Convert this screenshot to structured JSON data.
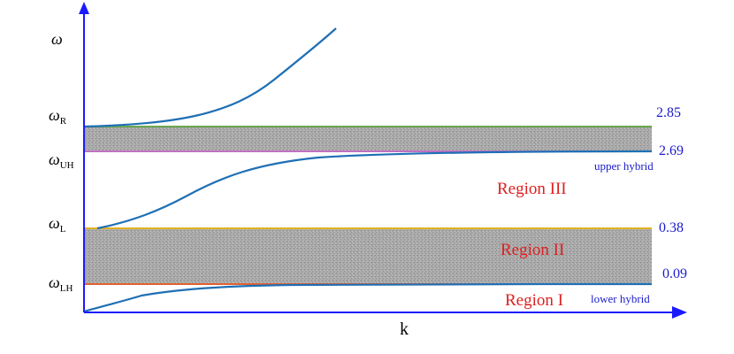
{
  "axes": {
    "y_label": "ω",
    "x_label": "k"
  },
  "frequency_labels": [
    {
      "id": "R",
      "symbol": "ω",
      "subscript": "R"
    },
    {
      "id": "UH",
      "symbol": "ω",
      "subscript": "UH"
    },
    {
      "id": "L",
      "symbol": "ω",
      "subscript": "L"
    },
    {
      "id": "LH",
      "symbol": "ω",
      "subscript": "LH"
    }
  ],
  "values": {
    "R": "2.85",
    "UH": "2.69",
    "L": "0.38",
    "LH": "0.09"
  },
  "annotations": {
    "upper_hybrid": "upper hybrid",
    "lower_hybrid": "lower hybrid"
  },
  "regions": {
    "region_1": "Region I",
    "region_2": "Region II",
    "region_3": "Region III"
  },
  "colors": {
    "curve": "#1f6fb4",
    "axis": "#1a1aff",
    "line_R": "#6aa84f",
    "line_UH": "#c070c0",
    "line_L": "#e0b020",
    "line_LH": "#e06030",
    "region_text": "#dd2020",
    "value_text": "#1a1acc",
    "band_fill": "#a8a8a8"
  }
}
